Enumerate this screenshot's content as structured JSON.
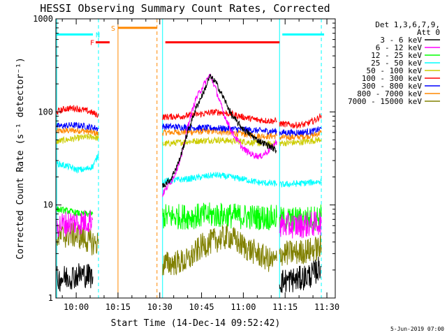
{
  "chart_data": {
    "type": "line",
    "title": "HESSI Observing Summary Count Rates, Corrected",
    "xlabel": "Start Time (14-Dec-14 09:52:42)",
    "ylabel": "Corrected Count Rate (s⁻¹ detector⁻¹)",
    "yscale": "log",
    "ylim": [
      1,
      1000
    ],
    "xlim": [
      "09:52:42",
      "11:33:00"
    ],
    "x_tick_labels": [
      "10:00",
      "10:15",
      "10:30",
      "10:45",
      "11:00",
      "11:15",
      "11:30"
    ],
    "y_tick_labels": [
      "1",
      "10",
      "100",
      "1000"
    ],
    "legend_header": [
      "Det 1,3,6,7,9,",
      "Att 0"
    ],
    "legend_position": "right",
    "footer_date": "5-Jun-2019 07:00",
    "series": [
      {
        "name": "3 - 6 keV",
        "color": "#000000",
        "segments": [
          {
            "x": [
              "09:53",
              "09:58",
              "10:02",
              "10:06"
            ],
            "y": [
              1.6,
              1.7,
              1.8,
              1.7
            ]
          },
          {
            "x": [
              "10:31",
              "10:34",
              "10:37",
              "10:40",
              "10:43",
              "10:46",
              "10:48",
              "10:50",
              "10:53",
              "10:56",
              "11:00",
              "11:05",
              "11:10",
              "11:12"
            ],
            "y": [
              16,
              19,
              30,
              60,
              110,
              170,
              240,
              210,
              140,
              90,
              65,
              50,
              42,
              38
            ]
          },
          {
            "x": [
              "11:13",
              "11:20",
              "11:25",
              "11:28"
            ],
            "y": [
              1.5,
              1.6,
              1.8,
              2.2
            ]
          }
        ]
      },
      {
        "name": "6 - 12 keV",
        "color": "#ff00ff",
        "segments": [
          {
            "x": [
              "09:53",
              "09:58",
              "10:02",
              "10:06"
            ],
            "y": [
              6,
              6.5,
              6.5,
              7
            ]
          },
          {
            "x": [
              "10:31",
              "10:35",
              "10:38",
              "10:40",
              "10:43",
              "10:46",
              "10:48",
              "10:50",
              "10:53",
              "10:56",
              "11:00",
              "11:03",
              "11:06",
              "11:09",
              "11:12"
            ],
            "y": [
              13,
              20,
              35,
              70,
              140,
              200,
              250,
              180,
              95,
              60,
              40,
              35,
              33,
              38,
              48
            ]
          },
          {
            "x": [
              "11:13",
              "11:20",
              "11:25",
              "11:28"
            ],
            "y": [
              6,
              6,
              6.2,
              6.5
            ]
          }
        ]
      },
      {
        "name": "12 - 25 keV",
        "color": "#00ff00",
        "segments": [
          {
            "x": [
              "09:53",
              "09:58",
              "10:02",
              "10:06"
            ],
            "y": [
              9,
              8.5,
              8,
              8
            ]
          },
          {
            "x": [
              "10:31",
              "10:40",
              "10:50",
              "11:00",
              "11:10",
              "11:12"
            ],
            "y": [
              7.5,
              7.5,
              7.8,
              7.5,
              7.3,
              7.3
            ]
          },
          {
            "x": [
              "11:13",
              "11:20",
              "11:25",
              "11:28"
            ],
            "y": [
              7,
              7,
              7.2,
              7.5
            ]
          }
        ]
      },
      {
        "name": "25 - 50 keV",
        "color": "#00ffff",
        "segments": [
          {
            "x": [
              "09:53",
              "09:57",
              "10:00",
              "10:03",
              "10:06",
              "10:08"
            ],
            "y": [
              28,
              26,
              24,
              24,
              26,
              35
            ]
          },
          {
            "x": [
              "10:31",
              "10:40",
              "10:50",
              "11:00",
              "11:05",
              "11:10",
              "11:12"
            ],
            "y": [
              18,
              19,
              21,
              19,
              17.5,
              17,
              17
            ]
          },
          {
            "x": [
              "11:13",
              "11:20",
              "11:25",
              "11:28"
            ],
            "y": [
              16.5,
              17,
              17.5,
              18
            ]
          }
        ]
      },
      {
        "name": "50 - 100 keV",
        "color": "#cccc00",
        "segments": [
          {
            "x": [
              "09:53",
              "09:58",
              "10:02",
              "10:06",
              "10:08"
            ],
            "y": [
              48,
              51,
              53,
              54,
              52
            ]
          },
          {
            "x": [
              "10:31",
              "10:40",
              "10:50",
              "11:00",
              "11:05",
              "11:10",
              "11:12"
            ],
            "y": [
              45,
              48,
              50,
              48,
              46,
              45,
              46
            ]
          },
          {
            "x": [
              "11:13",
              "11:20",
              "11:25",
              "11:28"
            ],
            "y": [
              46,
              47,
              49,
              51
            ]
          }
        ]
      },
      {
        "name": "100 - 300 keV",
        "color": "#ff0000",
        "segments": [
          {
            "x": [
              "09:53",
              "09:56",
              "09:59",
              "10:02",
              "10:05",
              "10:08"
            ],
            "y": [
              100,
              108,
              110,
              106,
              100,
              92
            ]
          },
          {
            "x": [
              "10:31",
              "10:38",
              "10:45",
              "10:50",
              "10:55",
              "11:00",
              "11:05",
              "11:10",
              "11:12"
            ],
            "y": [
              88,
              90,
              95,
              100,
              96,
              88,
              82,
              80,
              80
            ]
          },
          {
            "x": [
              "11:13",
              "11:18",
              "11:22",
              "11:26",
              "11:28"
            ],
            "y": [
              75,
              72,
              73,
              82,
              92
            ]
          }
        ]
      },
      {
        "name": "300 - 800 keV",
        "color": "#0000ff",
        "segments": [
          {
            "x": [
              "09:53",
              "09:58",
              "10:02",
              "10:06",
              "10:08"
            ],
            "y": [
              70,
              72,
              71,
              68,
              66
            ]
          },
          {
            "x": [
              "10:31",
              "10:40",
              "10:50",
              "11:00",
              "11:05",
              "11:10",
              "11:12"
            ],
            "y": [
              70,
              68,
              67,
              65,
              63,
              62,
              62
            ]
          },
          {
            "x": [
              "11:13",
              "11:20",
              "11:25",
              "11:28"
            ],
            "y": [
              60,
              60,
              62,
              66
            ]
          }
        ]
      },
      {
        "name": "800 - 7000 keV",
        "color": "#ff8800",
        "segments": [
          {
            "x": [
              "09:53",
              "09:58",
              "10:02",
              "10:06",
              "10:08"
            ],
            "y": [
              62,
              63,
              63,
              60,
              58
            ]
          },
          {
            "x": [
              "10:31",
              "10:40",
              "10:50",
              "11:00",
              "11:05",
              "11:10",
              "11:12"
            ],
            "y": [
              60,
              61,
              62,
              58,
              55,
              55,
              55
            ]
          },
          {
            "x": [
              "11:13",
              "11:20",
              "11:25",
              "11:28"
            ],
            "y": [
              53,
              54,
              56,
              60
            ]
          }
        ]
      },
      {
        "name": "7000 - 15000 keV",
        "color": "#808000",
        "segments": [
          {
            "x": [
              "09:53",
              "09:58",
              "10:02",
              "10:05",
              "10:08"
            ],
            "y": [
              4.5,
              4.8,
              4.5,
              4,
              3.8
            ]
          },
          {
            "x": [
              "10:31",
              "10:40",
              "10:45",
              "10:50",
              "10:55",
              "11:00",
              "11:05",
              "11:10",
              "11:12"
            ],
            "y": [
              2.3,
              2.5,
              3.6,
              4.2,
              4.6,
              3.6,
              3.0,
              2.5,
              2.5
            ]
          },
          {
            "x": [
              "11:13",
              "11:20",
              "11:25",
              "11:28"
            ],
            "y": [
              3,
              3.1,
              3.3,
              3.5
            ]
          }
        ]
      }
    ],
    "flag_bars": [
      {
        "label": "",
        "color": "#00ffff",
        "x": [
          "09:53",
          "10:06"
        ],
        "y": 680
      },
      {
        "label": "N",
        "color": "#00ffff",
        "label_x": "10:07",
        "y": 680
      },
      {
        "label": "F",
        "color": "#ff0000",
        "x": [
          "10:07",
          "10:12"
        ],
        "y": 560,
        "label_x": "10:05"
      },
      {
        "label": "S",
        "color": "#ff8800",
        "x": [
          "10:15",
          "10:29"
        ],
        "y": 800,
        "label_x": "10:12:30"
      },
      {
        "label": "",
        "color": "#ff0000",
        "x": [
          "10:32",
          "11:13"
        ],
        "y": 560
      },
      {
        "label": "",
        "color": "#00ffff",
        "x": [
          "11:14",
          "11:29"
        ],
        "y": 680
      }
    ],
    "vertical_lines": [
      {
        "x": "09:53",
        "color": "#00ffff",
        "style": "solid"
      },
      {
        "x": "10:08",
        "color": "#00ffff",
        "style": "dashed"
      },
      {
        "x": "10:15",
        "color": "#ff8800",
        "style": "solid"
      },
      {
        "x": "10:29",
        "color": "#ff8800",
        "style": "dashed"
      },
      {
        "x": "10:31",
        "color": "#00ffff",
        "style": "solid"
      },
      {
        "x": "11:13",
        "color": "#00ffff",
        "style": "solid"
      },
      {
        "x": "11:28",
        "color": "#00ffff",
        "style": "dashed"
      }
    ]
  }
}
